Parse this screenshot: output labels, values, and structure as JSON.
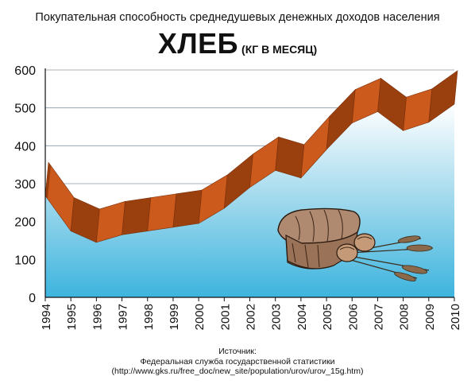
{
  "header": {
    "subtitle": "Покупательная способность среднедушевых денежных доходов населения",
    "title": "ХЛЕБ",
    "title_unit": "(КГ В МЕСЯЦ)"
  },
  "source": {
    "label": "Источник:",
    "org": "Федеральная служба государственной статистики",
    "url": "(http://www.gks.ru/free_doc/new_site/population/urov/urov_15g.htm)"
  },
  "colors": {
    "ribbon_top": "#cc5a1c",
    "ribbon_side": "#9a3f0e",
    "area_top": "#ffffff",
    "area_bottom": "#3db4de"
  },
  "illustration": {
    "icon": "bread-loaf-and-wheat-icon"
  },
  "chart_data": {
    "type": "area",
    "title": "ХЛЕБ (КГ В МЕСЯЦ)",
    "subtitle": "Покупательная способность среднедушевых денежных доходов населения",
    "xlabel": "",
    "ylabel": "",
    "x": [
      "1994",
      "1995",
      "1996",
      "1997",
      "1998",
      "1999",
      "2000",
      "2001",
      "2002",
      "2003",
      "2004",
      "2005",
      "2006",
      "2007",
      "2008",
      "2009",
      "2010"
    ],
    "series": [
      {
        "values": [
          268,
          175,
          145,
          165,
          175,
          185,
          195,
          235,
          290,
          335,
          315,
          390,
          460,
          490,
          440,
          462,
          510
        ]
      }
    ],
    "yticks": [
      0,
      100,
      200,
      300,
      400,
      500,
      600
    ],
    "ylim": [
      0,
      600
    ],
    "grid": true,
    "legend": "none"
  }
}
